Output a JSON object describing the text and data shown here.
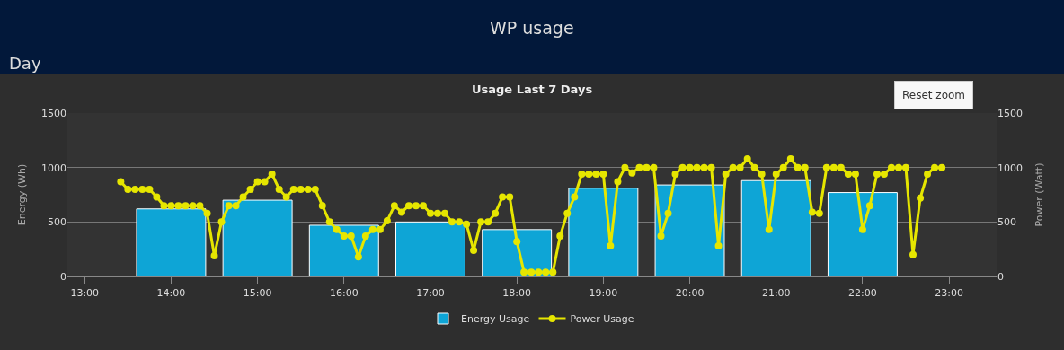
{
  "chart_data": {
    "type": "bar",
    "title": "WP usage",
    "subtitle": "Usage Last 7 Days",
    "annotations": [
      "Day",
      "Reset zoom"
    ],
    "xlabel": null,
    "ylabel": "Energy (Wh)",
    "y2label": "Power (Watt)",
    "x": [
      14,
      15,
      16,
      17,
      18,
      19,
      20,
      21,
      22
    ],
    "series": [
      {
        "name": "Energy Usage",
        "color": "#0ea5d6",
        "values": [
          620,
          700,
          470,
          500,
          430,
          810,
          840,
          880,
          770
        ]
      },
      {
        "name": "Power Usage",
        "type": "line",
        "axis": "y2",
        "color": "#e6e600",
        "marker": "circle",
        "line_style": "solid",
        "x": [
          13.417,
          13.5,
          13.583,
          13.667,
          13.75,
          13.833,
          13.917,
          14,
          14.083,
          14.167,
          14.25,
          14.333,
          14.417,
          14.5,
          14.583,
          14.667,
          14.75,
          14.833,
          14.917,
          15,
          15.083,
          15.167,
          15.25,
          15.333,
          15.417,
          15.5,
          15.583,
          15.667,
          15.75,
          15.833,
          15.917,
          16,
          16.083,
          16.167,
          16.25,
          16.333,
          16.417,
          16.5,
          16.583,
          16.667,
          16.75,
          16.833,
          16.917,
          17,
          17.083,
          17.167,
          17.25,
          17.333,
          17.417,
          17.5,
          17.583,
          17.667,
          17.75,
          17.833,
          17.917,
          18,
          18.083,
          18.167,
          18.25,
          18.333,
          18.417,
          18.5,
          18.583,
          18.667,
          18.75,
          18.833,
          18.917,
          19,
          19.083,
          19.167,
          19.25,
          19.333,
          19.417,
          19.5,
          19.583,
          19.667,
          19.75,
          19.833,
          19.917,
          20,
          20.083,
          20.167,
          20.25,
          20.333,
          20.417,
          20.5,
          20.583,
          20.667,
          20.75,
          20.833,
          20.917,
          21,
          21.083,
          21.167,
          21.25,
          21.333,
          21.417,
          21.5,
          21.583,
          21.667,
          21.75,
          21.833,
          21.917,
          22,
          22.083,
          22.167,
          22.25,
          22.333,
          22.417,
          22.5,
          22.583,
          22.667,
          22.75,
          22.833,
          22.917
        ],
        "values": [
          870,
          800,
          800,
          800,
          800,
          730,
          650,
          650,
          650,
          650,
          650,
          650,
          580,
          190,
          500,
          650,
          650,
          730,
          800,
          870,
          870,
          940,
          800,
          730,
          800,
          800,
          800,
          800,
          650,
          500,
          430,
          370,
          370,
          180,
          370,
          430,
          430,
          510,
          650,
          590,
          650,
          650,
          650,
          580,
          580,
          580,
          500,
          500,
          480,
          240,
          500,
          500,
          580,
          730,
          730,
          320,
          40,
          40,
          40,
          40,
          40,
          370,
          580,
          730,
          940,
          940,
          940,
          940,
          280,
          870,
          1000,
          950,
          1000,
          1000,
          1000,
          370,
          580,
          940,
          1000,
          1000,
          1000,
          1000,
          1000,
          280,
          940,
          1000,
          1000,
          1080,
          1000,
          940,
          430,
          940,
          1000,
          1080,
          1000,
          1000,
          590,
          580,
          1000,
          1000,
          1000,
          940,
          940,
          430,
          650,
          940,
          940,
          1000,
          1000,
          1000,
          200,
          720,
          940,
          1000,
          1000
        ]
      }
    ],
    "xlim": [
      12.8,
      23.55
    ],
    "xticks": [
      {
        "value": 13,
        "label": "13:00"
      },
      {
        "value": 14,
        "label": "14:00"
      },
      {
        "value": 15,
        "label": "15:00"
      },
      {
        "value": 16,
        "label": "16:00"
      },
      {
        "value": 17,
        "label": "17:00"
      },
      {
        "value": 18,
        "label": "18:00"
      },
      {
        "value": 19,
        "label": "19:00"
      },
      {
        "value": 20,
        "label": "20:00"
      },
      {
        "value": 21,
        "label": "21:00"
      },
      {
        "value": 22,
        "label": "22:00"
      },
      {
        "value": 23,
        "label": "23:00"
      }
    ],
    "ylim": [
      0,
      1500
    ],
    "yticks": [
      0,
      500,
      1000,
      1500
    ],
    "y2lim": [
      0,
      1500
    ],
    "y2ticks": [
      0,
      500,
      1000,
      1500
    ],
    "grid": "y",
    "legend": "bottom"
  }
}
